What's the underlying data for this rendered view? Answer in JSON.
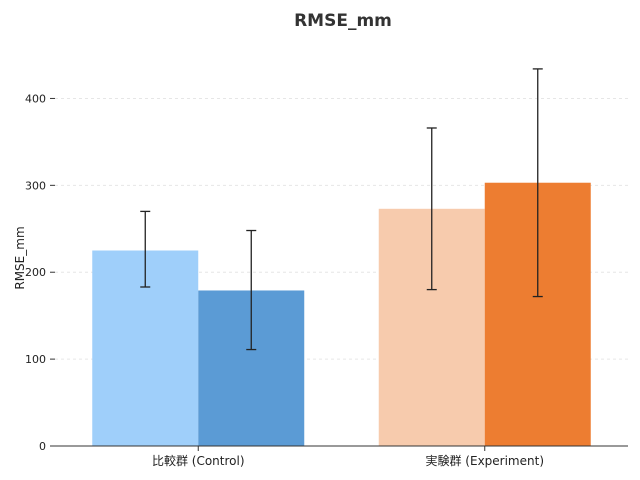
{
  "chart_data": {
    "type": "bar",
    "title": "RMSE_mm",
    "xlabel": "",
    "ylabel": "RMSE_mm",
    "ylim": [
      0,
      450
    ],
    "yticks": [
      0,
      100,
      200,
      300,
      400
    ],
    "grid": true,
    "categories": [
      "比較群 (Control)",
      "実験群 (Experiment)"
    ],
    "groups": [
      {
        "category": "比較群 (Control)",
        "bars": [
          {
            "value": 225,
            "err_low": 183,
            "err_high": 270,
            "color": "#9fcffa"
          },
          {
            "value": 179,
            "err_low": 111,
            "err_high": 248,
            "color": "#5b9bd5"
          }
        ]
      },
      {
        "category": "実験群 (Experiment)",
        "bars": [
          {
            "value": 273,
            "err_low": 180,
            "err_high": 366,
            "color": "#f7cbad"
          },
          {
            "value": 303,
            "err_low": 172,
            "err_high": 434,
            "color": "#ed7d31"
          }
        ]
      }
    ]
  }
}
